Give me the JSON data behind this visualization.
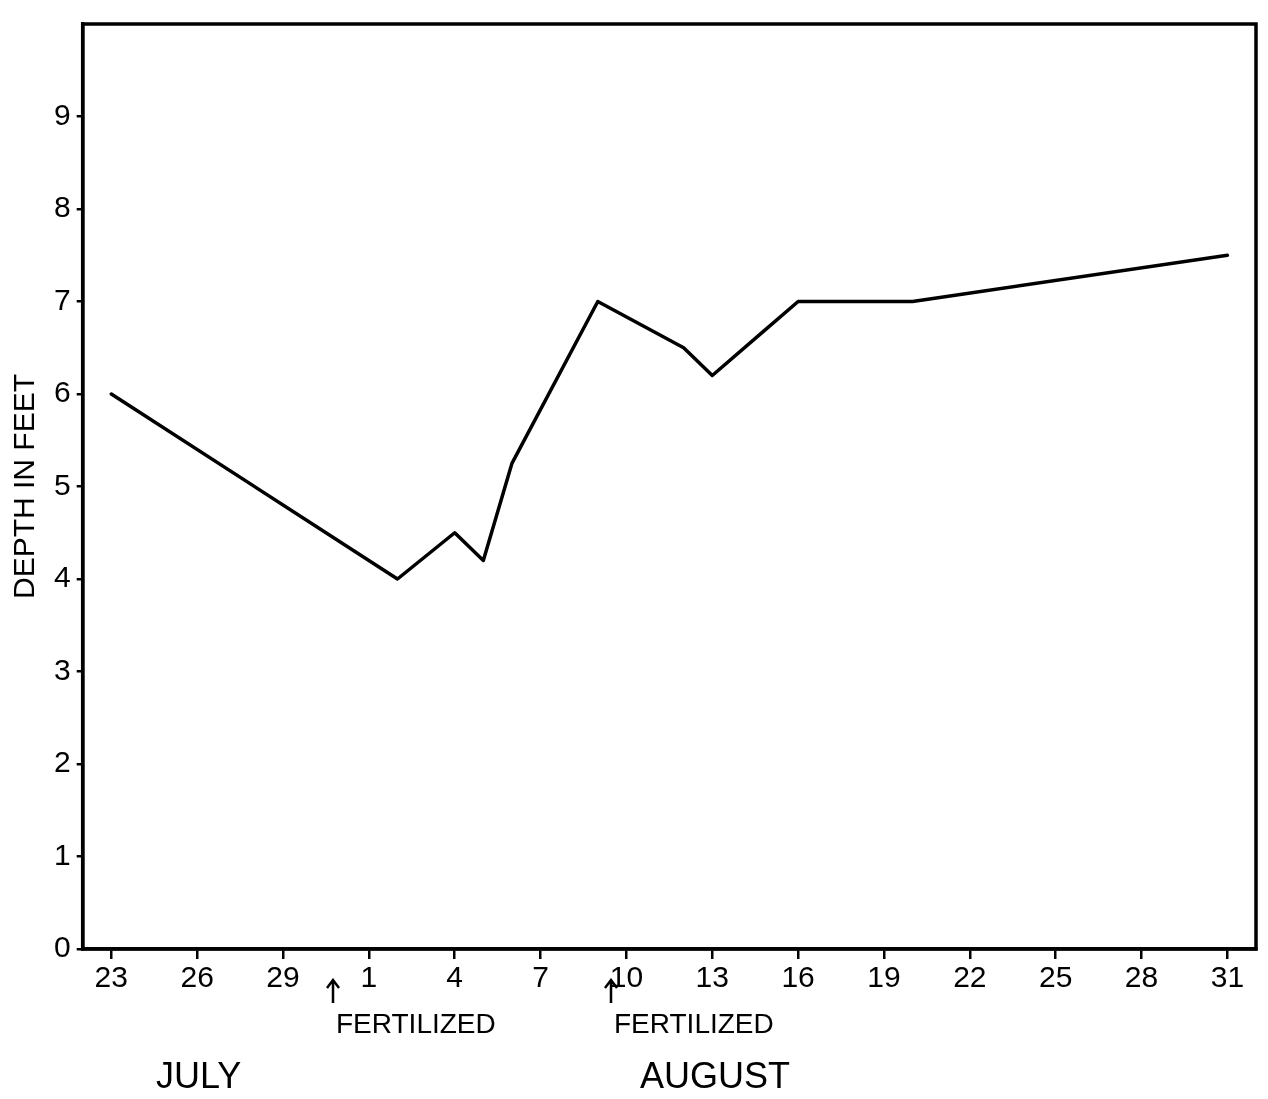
{
  "chart_data": {
    "type": "line",
    "ylabel": "DEPTH IN FEET",
    "x": [
      "--07-23",
      "--08-02",
      "--08-04",
      "--08-05",
      "--08-06",
      "--08-09",
      "--08-12",
      "--08-13",
      "--08-16",
      "--08-17",
      "--08-20",
      "--08-31"
    ],
    "series": [
      {
        "color": "#000000",
        "values": [
          6.0,
          4.0,
          4.5,
          4.2,
          5.25,
          7.0,
          6.5,
          6.2,
          7.0,
          7.0,
          7.0,
          7.5
        ]
      }
    ],
    "xlim": [
      "--07-22",
      "--09-01"
    ],
    "xticks": [
      {
        "value": "--07-23",
        "label": "23"
      },
      {
        "value": "--07-26",
        "label": "26"
      },
      {
        "value": "--07-29",
        "label": "29"
      },
      {
        "value": "--08-01",
        "label": "1"
      },
      {
        "value": "--08-04",
        "label": "4"
      },
      {
        "value": "--08-07",
        "label": "7"
      },
      {
        "value": "--08-10",
        "label": "10"
      },
      {
        "value": "--08-13",
        "label": "13"
      },
      {
        "value": "--08-16",
        "label": "16"
      },
      {
        "value": "--08-19",
        "label": "19"
      },
      {
        "value": "--08-22",
        "label": "22"
      },
      {
        "value": "--08-25",
        "label": "25"
      },
      {
        "value": "--08-28",
        "label": "28"
      },
      {
        "value": "--08-31",
        "label": "31"
      }
    ],
    "ylim": [
      0,
      10
    ],
    "yticks": [
      0,
      1,
      2,
      3,
      4,
      5,
      6,
      7,
      8,
      9
    ],
    "annotations": [
      "FERTILIZED",
      "FERTILIZED",
      "JULY",
      "AUGUST"
    ],
    "grid": false,
    "legend": false,
    "marker": "none",
    "line_style": "solid"
  }
}
